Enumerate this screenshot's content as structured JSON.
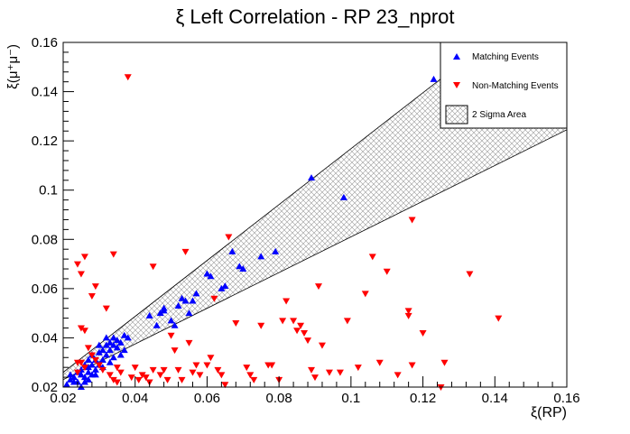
{
  "chart_data": {
    "type": "scatter",
    "title": "ξ Left Correlation - RP 23_nprot",
    "xlabel": "ξ(RP)",
    "ylabel": "ξ(μ⁺μ⁻)",
    "xlim": [
      0.02,
      0.16
    ],
    "ylim": [
      0.02,
      0.16
    ],
    "x_ticks": [
      "0.02",
      "0.04",
      "0.06",
      "0.08",
      "0.1",
      "0.12",
      "0.14",
      "0.16"
    ],
    "y_ticks": [
      "0.02",
      "0.04",
      "0.06",
      "0.08",
      "0.1",
      "0.12",
      "0.14",
      "0.16"
    ],
    "x_tick_values": [
      0.02,
      0.04,
      0.06,
      0.08,
      0.1,
      0.12,
      0.14,
      0.16
    ],
    "y_tick_values": [
      0.02,
      0.04,
      0.06,
      0.08,
      0.1,
      0.12,
      0.14,
      0.16
    ],
    "grid": false,
    "legend_position": "top-right",
    "band": {
      "name": "2 Sigma Area",
      "upper": [
        [
          0.02,
          0.026
        ],
        [
          0.138,
          0.16
        ]
      ],
      "lower": [
        [
          0.02,
          0.023
        ],
        [
          0.16,
          0.1245
        ]
      ]
    },
    "series": [
      {
        "name": "Matching Events",
        "marker": "triangle-up",
        "color": "#0000ff",
        "points": [
          [
            0.021,
            0.021
          ],
          [
            0.022,
            0.023
          ],
          [
            0.022,
            0.025
          ],
          [
            0.023,
            0.022
          ],
          [
            0.023,
            0.024
          ],
          [
            0.024,
            0.026
          ],
          [
            0.024,
            0.022
          ],
          [
            0.025,
            0.025
          ],
          [
            0.025,
            0.027
          ],
          [
            0.026,
            0.024
          ],
          [
            0.026,
            0.029
          ],
          [
            0.026,
            0.022
          ],
          [
            0.027,
            0.026
          ],
          [
            0.027,
            0.028
          ],
          [
            0.027,
            0.031
          ],
          [
            0.028,
            0.025
          ],
          [
            0.028,
            0.029
          ],
          [
            0.028,
            0.033
          ],
          [
            0.029,
            0.027
          ],
          [
            0.029,
            0.031
          ],
          [
            0.03,
            0.029
          ],
          [
            0.03,
            0.034
          ],
          [
            0.03,
            0.037
          ],
          [
            0.031,
            0.031
          ],
          [
            0.031,
            0.035
          ],
          [
            0.032,
            0.033
          ],
          [
            0.032,
            0.037
          ],
          [
            0.032,
            0.04
          ],
          [
            0.033,
            0.035
          ],
          [
            0.033,
            0.038
          ],
          [
            0.034,
            0.037
          ],
          [
            0.034,
            0.04
          ],
          [
            0.035,
            0.036
          ],
          [
            0.035,
            0.039
          ],
          [
            0.036,
            0.038
          ],
          [
            0.037,
            0.041
          ],
          [
            0.037,
            0.035
          ],
          [
            0.038,
            0.04
          ],
          [
            0.033,
            0.03
          ],
          [
            0.034,
            0.032
          ],
          [
            0.036,
            0.033
          ],
          [
            0.031,
            0.028
          ],
          [
            0.025,
            0.02
          ],
          [
            0.029,
            0.025
          ],
          [
            0.027,
            0.023
          ],
          [
            0.044,
            0.049
          ],
          [
            0.046,
            0.045
          ],
          [
            0.047,
            0.05
          ],
          [
            0.048,
            0.052
          ],
          [
            0.048,
            0.051
          ],
          [
            0.05,
            0.047
          ],
          [
            0.051,
            0.045
          ],
          [
            0.052,
            0.053
          ],
          [
            0.053,
            0.056
          ],
          [
            0.054,
            0.055
          ],
          [
            0.055,
            0.05
          ],
          [
            0.056,
            0.055
          ],
          [
            0.057,
            0.058
          ],
          [
            0.06,
            0.066
          ],
          [
            0.061,
            0.065
          ],
          [
            0.064,
            0.06
          ],
          [
            0.065,
            0.061
          ],
          [
            0.067,
            0.075
          ],
          [
            0.069,
            0.069
          ],
          [
            0.07,
            0.068
          ],
          [
            0.075,
            0.073
          ],
          [
            0.079,
            0.075
          ],
          [
            0.089,
            0.105
          ],
          [
            0.098,
            0.097
          ],
          [
            0.123,
            0.145
          ]
        ]
      },
      {
        "name": "Non-Matching Events",
        "marker": "triangle-down",
        "color": "#ff0000",
        "points": [
          [
            0.038,
            0.146
          ],
          [
            0.024,
            0.07
          ],
          [
            0.026,
            0.073
          ],
          [
            0.025,
            0.066
          ],
          [
            0.034,
            0.074
          ],
          [
            0.029,
            0.061
          ],
          [
            0.028,
            0.057
          ],
          [
            0.032,
            0.052
          ],
          [
            0.025,
            0.044
          ],
          [
            0.026,
            0.043
          ],
          [
            0.027,
            0.036
          ],
          [
            0.025,
            0.03
          ],
          [
            0.026,
            0.028
          ],
          [
            0.024,
            0.03
          ],
          [
            0.024,
            0.026
          ],
          [
            0.028,
            0.033
          ],
          [
            0.029,
            0.031
          ],
          [
            0.03,
            0.029
          ],
          [
            0.031,
            0.027
          ],
          [
            0.033,
            0.025
          ],
          [
            0.034,
            0.023
          ],
          [
            0.035,
            0.028
          ],
          [
            0.035,
            0.022
          ],
          [
            0.036,
            0.026
          ],
          [
            0.04,
            0.028
          ],
          [
            0.039,
            0.024
          ],
          [
            0.041,
            0.023
          ],
          [
            0.042,
            0.025
          ],
          [
            0.043,
            0.024
          ],
          [
            0.044,
            0.022
          ],
          [
            0.045,
            0.027
          ],
          [
            0.045,
            0.069
          ],
          [
            0.047,
            0.025
          ],
          [
            0.048,
            0.027
          ],
          [
            0.049,
            0.023
          ],
          [
            0.05,
            0.041
          ],
          [
            0.051,
            0.035
          ],
          [
            0.052,
            0.027
          ],
          [
            0.053,
            0.023
          ],
          [
            0.054,
            0.075
          ],
          [
            0.055,
            0.038
          ],
          [
            0.056,
            0.026
          ],
          [
            0.057,
            0.029
          ],
          [
            0.058,
            0.025
          ],
          [
            0.06,
            0.029
          ],
          [
            0.061,
            0.032
          ],
          [
            0.062,
            0.056
          ],
          [
            0.063,
            0.027
          ],
          [
            0.064,
            0.025
          ],
          [
            0.065,
            0.021
          ],
          [
            0.066,
            0.081
          ],
          [
            0.068,
            0.046
          ],
          [
            0.071,
            0.028
          ],
          [
            0.072,
            0.025
          ],
          [
            0.073,
            0.023
          ],
          [
            0.075,
            0.045
          ],
          [
            0.077,
            0.029
          ],
          [
            0.078,
            0.029
          ],
          [
            0.08,
            0.023
          ],
          [
            0.081,
            0.047
          ],
          [
            0.082,
            0.055
          ],
          [
            0.084,
            0.047
          ],
          [
            0.085,
            0.043
          ],
          [
            0.086,
            0.045
          ],
          [
            0.087,
            0.042
          ],
          [
            0.088,
            0.039
          ],
          [
            0.089,
            0.027
          ],
          [
            0.09,
            0.024
          ],
          [
            0.091,
            0.061
          ],
          [
            0.092,
            0.037
          ],
          [
            0.094,
            0.026
          ],
          [
            0.097,
            0.026
          ],
          [
            0.099,
            0.047
          ],
          [
            0.102,
            0.028
          ],
          [
            0.104,
            0.058
          ],
          [
            0.106,
            0.073
          ],
          [
            0.108,
            0.03
          ],
          [
            0.11,
            0.067
          ],
          [
            0.113,
            0.025
          ],
          [
            0.116,
            0.049
          ],
          [
            0.116,
            0.051
          ],
          [
            0.117,
            0.029
          ],
          [
            0.117,
            0.088
          ],
          [
            0.12,
            0.042
          ],
          [
            0.125,
            0.02
          ],
          [
            0.126,
            0.03
          ],
          [
            0.133,
            0.066
          ],
          [
            0.141,
            0.048
          ]
        ]
      }
    ]
  }
}
